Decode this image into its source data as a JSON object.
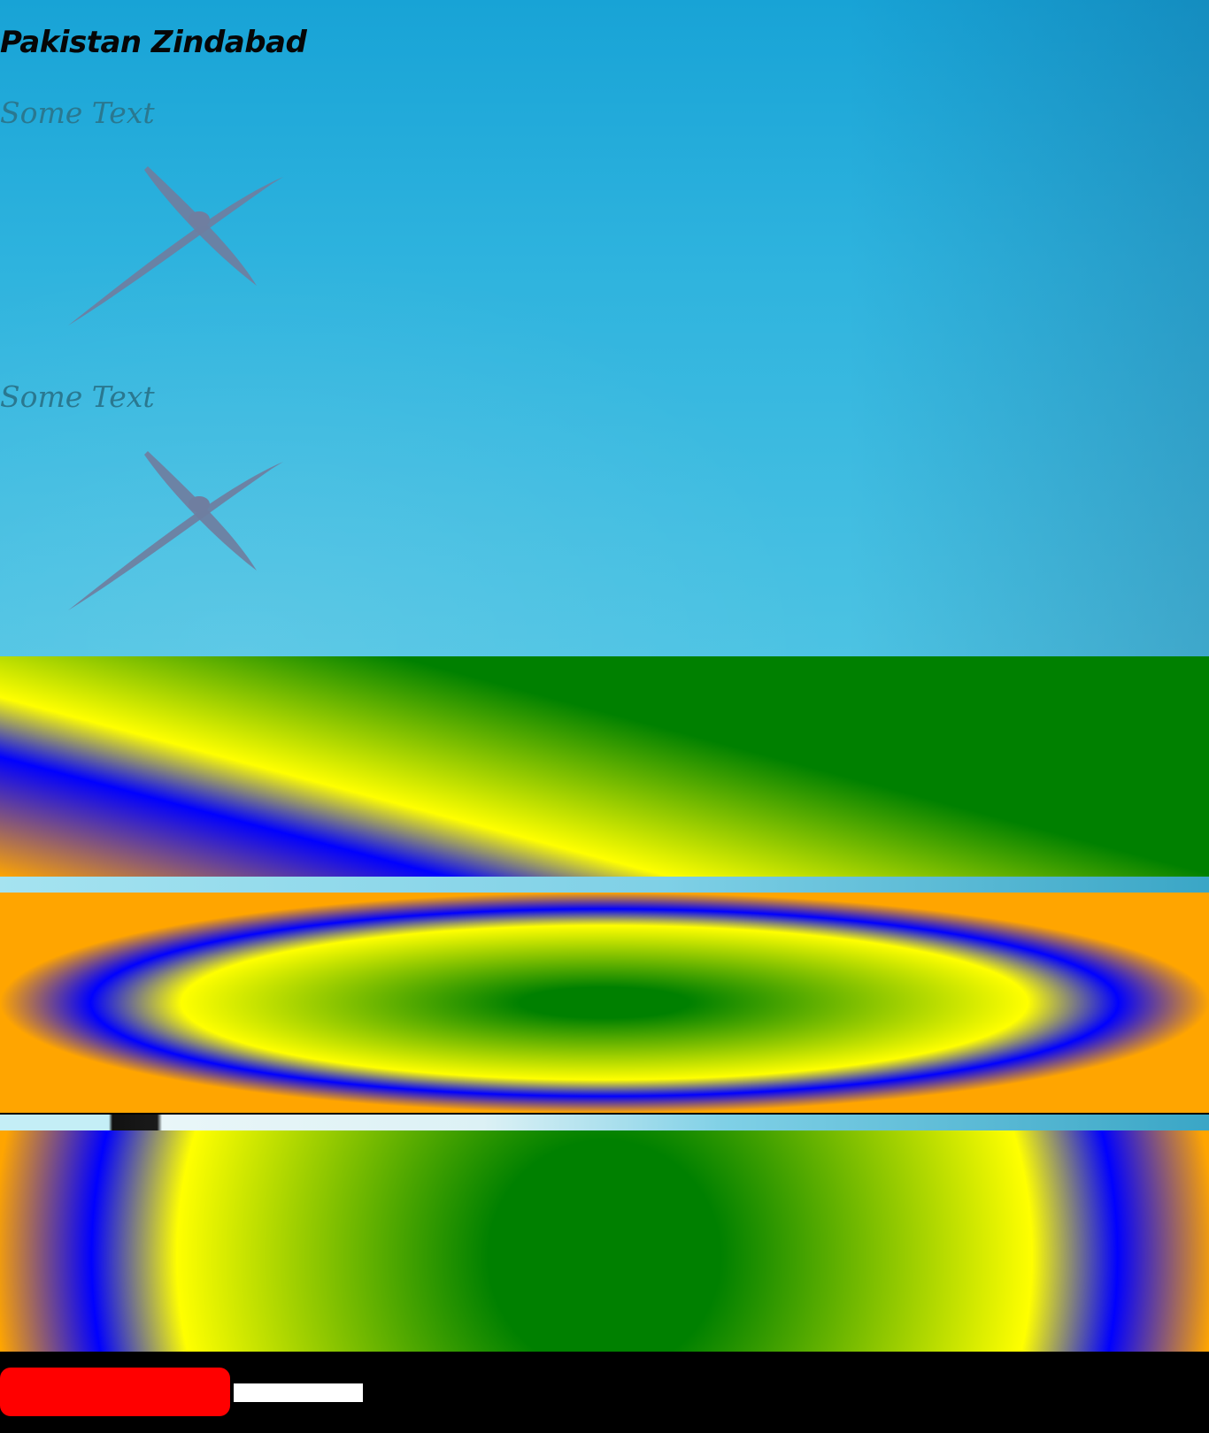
{
  "header": {
    "title": "Pakistan Zindabad"
  },
  "sections": [
    {
      "text": "Some Text",
      "icon": "crossed-swords-icon"
    },
    {
      "text": "Some Text",
      "icon": "crossed-swords-icon"
    }
  ],
  "colors": {
    "sky_top": "#18a3d6",
    "sky_bottom": "#4cc3e3",
    "gradient_stops": [
      "#ffa500",
      "#0000ff",
      "#ffff00",
      "#008000"
    ],
    "icon": "#6f7ea0",
    "footer": "#000000",
    "button": "#ff0000",
    "field": "#ffffff"
  },
  "footer": {
    "button_label": "",
    "field_value": ""
  }
}
